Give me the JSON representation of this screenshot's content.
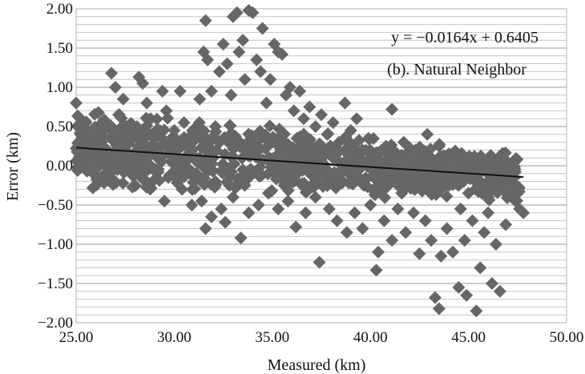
{
  "chart_data": {
    "type": "scatter",
    "title": "",
    "xlabel": "Measured (km)",
    "ylabel": "Error (km)",
    "xlim": [
      25,
      50
    ],
    "ylim": [
      -2,
      2
    ],
    "x_ticks": [
      "25.00",
      "30.00",
      "35.00",
      "40.00",
      "45.00",
      "50.00"
    ],
    "y_ticks": [
      "2.00",
      "1.50",
      "1.00",
      "0.50",
      "0.00",
      "−0.50",
      "−1.00",
      "−1.50",
      "−2.00"
    ],
    "grid": "horizontal",
    "marker": "diamond",
    "marker_color": "#666666",
    "line_color": "#111111",
    "annotations": {
      "equation": "y = −0.0164x + 0.6405",
      "label": "(b). Natural Neighbor"
    },
    "trendline": {
      "slope": -0.0164,
      "intercept": 0.6405,
      "x_range": [
        25,
        47.8
      ]
    },
    "series": [
      {
        "points": [
          [
            25.0,
            0.8
          ],
          [
            25.1,
            0.25
          ],
          [
            25.3,
            0.35
          ],
          [
            25.5,
            0.15
          ],
          [
            25.8,
            0.42
          ],
          [
            26.0,
            0.05
          ],
          [
            26.3,
            0.3
          ],
          [
            26.6,
            0.2
          ],
          [
            26.8,
            1.18
          ],
          [
            27.0,
            1.0
          ],
          [
            27.2,
            0.65
          ],
          [
            27.4,
            0.85
          ],
          [
            27.6,
            0.4
          ],
          [
            27.9,
            0.15
          ],
          [
            28.2,
            1.13
          ],
          [
            28.4,
            1.05
          ],
          [
            28.6,
            0.8
          ],
          [
            28.8,
            0.6
          ],
          [
            29.0,
            0.35
          ],
          [
            29.2,
            0.1
          ],
          [
            29.4,
            0.95
          ],
          [
            29.6,
            0.7
          ],
          [
            29.9,
            0.25
          ],
          [
            30.1,
            0.0
          ],
          [
            30.3,
            0.95
          ],
          [
            30.5,
            0.55
          ],
          [
            30.8,
            0.3
          ],
          [
            31.0,
            -0.1
          ],
          [
            31.3,
            0.85
          ],
          [
            31.5,
            1.45
          ],
          [
            31.6,
            1.85
          ],
          [
            31.7,
            1.35
          ],
          [
            31.9,
            0.95
          ],
          [
            32.1,
            0.5
          ],
          [
            32.3,
            1.2
          ],
          [
            32.5,
            1.55
          ],
          [
            32.7,
            1.3
          ],
          [
            32.9,
            0.9
          ],
          [
            33.0,
            1.9
          ],
          [
            33.2,
            1.95
          ],
          [
            33.3,
            1.45
          ],
          [
            33.5,
            1.6
          ],
          [
            33.6,
            1.1
          ],
          [
            33.8,
            1.98
          ],
          [
            34.0,
            1.95
          ],
          [
            34.2,
            1.35
          ],
          [
            34.4,
            1.2
          ],
          [
            34.5,
            1.75
          ],
          [
            34.7,
            0.8
          ],
          [
            34.9,
            1.1
          ],
          [
            35.1,
            1.55
          ],
          [
            35.3,
            1.45
          ],
          [
            35.5,
            1.42
          ],
          [
            35.7,
            0.9
          ],
          [
            35.9,
            1.0
          ],
          [
            36.1,
            0.7
          ],
          [
            36.4,
            0.95
          ],
          [
            36.6,
            0.6
          ],
          [
            36.9,
            0.75
          ],
          [
            37.2,
            0.5
          ],
          [
            37.5,
            0.65
          ],
          [
            37.8,
            0.4
          ],
          [
            38.1,
            0.55
          ],
          [
            38.4,
            0.3
          ],
          [
            38.7,
            0.8
          ],
          [
            39.0,
            0.45
          ],
          [
            39.3,
            0.6
          ],
          [
            39.6,
            0.2
          ],
          [
            39.9,
            0.35
          ],
          [
            40.2,
            0.15
          ],
          [
            40.5,
            0.05
          ],
          [
            40.8,
            0.25
          ],
          [
            41.1,
            0.72
          ],
          [
            41.4,
            0.1
          ],
          [
            41.7,
            0.3
          ],
          [
            42.0,
            -0.05
          ],
          [
            42.3,
            0.2
          ],
          [
            42.6,
            0.05
          ],
          [
            42.9,
            0.4
          ],
          [
            43.2,
            -0.1
          ],
          [
            43.5,
            0.25
          ],
          [
            43.8,
            -0.05
          ],
          [
            44.1,
            0.1
          ],
          [
            44.4,
            -0.15
          ],
          [
            44.7,
            0.05
          ],
          [
            45.0,
            -0.1
          ],
          [
            45.3,
            0.12
          ],
          [
            45.6,
            -0.2
          ],
          [
            45.9,
            0.0
          ],
          [
            46.2,
            -0.15
          ],
          [
            46.5,
            -0.05
          ],
          [
            46.8,
            -0.3
          ],
          [
            47.1,
            -0.2
          ],
          [
            47.4,
            -0.45
          ],
          [
            47.6,
            -0.55
          ],
          [
            47.8,
            -0.6
          ],
          [
            25.4,
            0.1
          ],
          [
            26.2,
            0.0
          ],
          [
            27.1,
            -0.05
          ],
          [
            28.0,
            -0.1
          ],
          [
            28.9,
            -0.2
          ],
          [
            29.7,
            -0.15
          ],
          [
            30.4,
            -0.3
          ],
          [
            30.9,
            -0.5
          ],
          [
            31.4,
            -0.45
          ],
          [
            31.6,
            -0.8
          ],
          [
            31.9,
            -0.65
          ],
          [
            32.4,
            -0.55
          ],
          [
            32.6,
            -0.72
          ],
          [
            33.0,
            -0.4
          ],
          [
            33.4,
            -0.92
          ],
          [
            33.8,
            -0.6
          ],
          [
            34.3,
            -0.5
          ],
          [
            34.8,
            -0.35
          ],
          [
            35.3,
            -0.55
          ],
          [
            35.8,
            -0.45
          ],
          [
            36.2,
            -0.78
          ],
          [
            36.7,
            -0.6
          ],
          [
            37.2,
            -0.4
          ],
          [
            37.4,
            -1.23
          ],
          [
            37.9,
            -0.55
          ],
          [
            38.3,
            -0.7
          ],
          [
            38.8,
            -0.85
          ],
          [
            39.2,
            -0.6
          ],
          [
            39.6,
            -0.8
          ],
          [
            40.0,
            -0.5
          ],
          [
            40.3,
            -1.33
          ],
          [
            40.4,
            -1.1
          ],
          [
            40.7,
            -0.7
          ],
          [
            41.1,
            -0.95
          ],
          [
            41.4,
            -0.55
          ],
          [
            41.8,
            -0.85
          ],
          [
            42.2,
            -0.6
          ],
          [
            42.5,
            -1.12
          ],
          [
            42.8,
            -0.7
          ],
          [
            43.1,
            -0.95
          ],
          [
            43.3,
            -1.68
          ],
          [
            43.5,
            -1.82
          ],
          [
            43.6,
            -1.15
          ],
          [
            43.9,
            -0.8
          ],
          [
            44.2,
            -1.1
          ],
          [
            44.5,
            -1.55
          ],
          [
            44.8,
            -0.95
          ],
          [
            44.9,
            -1.65
          ],
          [
            45.2,
            -0.7
          ],
          [
            45.4,
            -1.85
          ],
          [
            45.6,
            -1.3
          ],
          [
            45.8,
            -0.85
          ],
          [
            46.0,
            -0.6
          ],
          [
            46.2,
            -1.5
          ],
          [
            46.4,
            -1.0
          ],
          [
            46.6,
            -1.6
          ],
          [
            46.9,
            -0.75
          ],
          [
            47.2,
            -0.4
          ],
          [
            25.6,
            0.38
          ],
          [
            26.4,
            0.45
          ],
          [
            27.3,
            0.25
          ],
          [
            28.1,
            0.5
          ],
          [
            29.1,
            0.4
          ],
          [
            30.0,
            0.45
          ],
          [
            31.1,
            0.4
          ],
          [
            32.0,
            0.35
          ],
          [
            33.1,
            0.3
          ],
          [
            34.1,
            0.25
          ],
          [
            35.0,
            0.3
          ],
          [
            36.0,
            0.2
          ],
          [
            37.0,
            0.2
          ],
          [
            38.0,
            0.15
          ],
          [
            39.0,
            0.1
          ],
          [
            40.0,
            0.05
          ],
          [
            41.0,
            0.0
          ],
          [
            42.0,
            -0.1
          ],
          [
            43.0,
            -0.2
          ],
          [
            44.0,
            -0.25
          ],
          [
            45.0,
            -0.35
          ],
          [
            46.0,
            -0.4
          ],
          [
            29.5,
            -0.45
          ],
          [
            33.6,
            -0.25
          ],
          [
            36.5,
            0.05
          ],
          [
            38.6,
            -0.2
          ],
          [
            41.6,
            -0.35
          ],
          [
            44.6,
            -0.55
          ],
          [
            26.5,
            -0.1
          ],
          [
            35.5,
            -0.15
          ]
        ]
      }
    ]
  }
}
